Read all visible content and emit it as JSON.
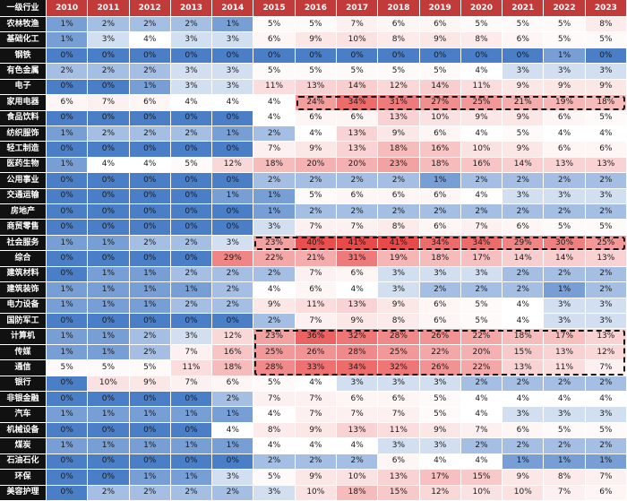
{
  "chart_data": {
    "type": "heatmap",
    "corner_label": "一级行业",
    "columns": [
      "2010",
      "2011",
      "2012",
      "2013",
      "2014",
      "2015",
      "2016",
      "2017",
      "2018",
      "2019",
      "2020",
      "2021",
      "2022",
      "2023"
    ],
    "rows": [
      "农林牧渔",
      "基础化工",
      "钢铁",
      "有色金属",
      "电子",
      "家用电器",
      "食品饮料",
      "纺织服饰",
      "轻工制造",
      "医药生物",
      "公用事业",
      "交通运输",
      "房地产",
      "商贸零售",
      "社会服务",
      "综合",
      "建筑材料",
      "建筑装饰",
      "电力设备",
      "国防军工",
      "计算机",
      "传媒",
      "通信",
      "银行",
      "非银金融",
      "汽车",
      "机械设备",
      "煤炭",
      "石油石化",
      "环保",
      "美容护理"
    ],
    "values": [
      [
        1,
        2,
        2,
        2,
        1,
        5,
        5,
        7,
        6,
        6,
        5,
        5,
        5,
        8
      ],
      [
        1,
        3,
        4,
        3,
        3,
        6,
        9,
        10,
        8,
        9,
        8,
        6,
        5,
        5
      ],
      [
        0,
        0,
        0,
        0,
        0,
        0,
        0,
        0,
        0,
        0,
        0,
        0,
        1,
        0
      ],
      [
        2,
        2,
        2,
        3,
        3,
        5,
        5,
        5,
        5,
        5,
        4,
        3,
        3,
        3
      ],
      [
        0,
        0,
        1,
        3,
        3,
        11,
        13,
        14,
        12,
        14,
        11,
        9,
        9,
        9
      ],
      [
        6,
        7,
        6,
        4,
        4,
        4,
        24,
        34,
        31,
        27,
        25,
        21,
        19,
        18
      ],
      [
        0,
        0,
        0,
        0,
        0,
        4,
        6,
        6,
        13,
        10,
        9,
        9,
        6,
        5
      ],
      [
        1,
        2,
        2,
        2,
        1,
        2,
        4,
        13,
        9,
        6,
        4,
        5,
        4,
        4
      ],
      [
        0,
        0,
        0,
        0,
        0,
        7,
        9,
        13,
        18,
        16,
        10,
        9,
        6,
        6
      ],
      [
        1,
        4,
        4,
        5,
        12,
        18,
        20,
        20,
        23,
        18,
        16,
        14,
        13,
        13
      ],
      [
        0,
        0,
        0,
        0,
        0,
        2,
        2,
        2,
        2,
        1,
        2,
        2,
        2,
        2
      ],
      [
        0,
        0,
        0,
        0,
        1,
        1,
        5,
        6,
        6,
        6,
        4,
        3,
        3,
        3
      ],
      [
        0,
        0,
        0,
        0,
        0,
        1,
        2,
        2,
        2,
        2,
        2,
        2,
        2,
        2
      ],
      [
        0,
        0,
        0,
        0,
        0,
        3,
        7,
        7,
        8,
        6,
        7,
        6,
        5,
        5
      ],
      [
        1,
        1,
        2,
        2,
        3,
        23,
        40,
        41,
        41,
        34,
        34,
        29,
        30,
        25
      ],
      [
        0,
        0,
        0,
        0,
        29,
        22,
        21,
        31,
        19,
        18,
        17,
        14,
        14,
        13
      ],
      [
        0,
        1,
        1,
        2,
        2,
        2,
        7,
        6,
        3,
        3,
        3,
        2,
        2,
        2
      ],
      [
        1,
        1,
        1,
        1,
        2,
        4,
        6,
        4,
        3,
        2,
        2,
        2,
        1,
        2
      ],
      [
        1,
        1,
        1,
        2,
        2,
        9,
        11,
        13,
        9,
        6,
        5,
        4,
        3,
        3
      ],
      [
        0,
        0,
        0,
        0,
        0,
        2,
        7,
        9,
        8,
        6,
        5,
        4,
        3,
        3
      ],
      [
        1,
        1,
        2,
        3,
        12,
        23,
        36,
        32,
        28,
        26,
        22,
        18,
        17,
        13
      ],
      [
        1,
        1,
        2,
        7,
        16,
        25,
        26,
        28,
        25,
        22,
        20,
        15,
        13,
        12
      ],
      [
        5,
        5,
        5,
        11,
        18,
        28,
        33,
        34,
        32,
        26,
        22,
        13,
        11,
        7
      ],
      [
        0,
        10,
        9,
        7,
        6,
        5,
        4,
        3,
        3,
        3,
        2,
        2,
        2,
        2
      ],
      [
        0,
        0,
        0,
        0,
        2,
        7,
        7,
        6,
        6,
        5,
        4,
        4,
        4,
        4
      ],
      [
        1,
        1,
        1,
        1,
        1,
        4,
        7,
        7,
        7,
        5,
        4,
        3,
        3,
        3
      ],
      [
        0,
        0,
        0,
        0,
        4,
        8,
        9,
        13,
        11,
        9,
        7,
        6,
        5,
        5
      ],
      [
        1,
        1,
        1,
        1,
        1,
        4,
        4,
        4,
        3,
        3,
        2,
        2,
        2,
        2
      ],
      [
        0,
        0,
        0,
        0,
        0,
        2,
        2,
        2,
        6,
        4,
        4,
        1,
        1,
        1
      ],
      [
        0,
        0,
        1,
        1,
        3,
        5,
        9,
        10,
        13,
        17,
        15,
        9,
        8,
        7
      ],
      [
        0,
        2,
        2,
        2,
        2,
        3,
        10,
        18,
        15,
        12,
        10,
        10,
        7,
        6
      ]
    ],
    "unit": "%",
    "color_scale": {
      "low": "#4a7fc8",
      "mid": "#ffffff",
      "high": "#e84a4a",
      "mid_value": 4,
      "max_value": 41
    },
    "highlights": [
      {
        "row_start": "家用电器",
        "row_end": "家用电器",
        "col_start": "2016",
        "col_end": "2023"
      },
      {
        "row_start": "社会服务",
        "row_end": "社会服务",
        "col_start": "2015",
        "col_end": "2023"
      },
      {
        "row_start": "计算机",
        "row_end": "通信",
        "col_start": "2015",
        "col_end": "2023"
      }
    ],
    "colors": {
      "corner_bg": "#111111",
      "column_header_bg": "#c23b3b",
      "row_header_bg": "#111111",
      "highlight_border": "#111111"
    }
  }
}
